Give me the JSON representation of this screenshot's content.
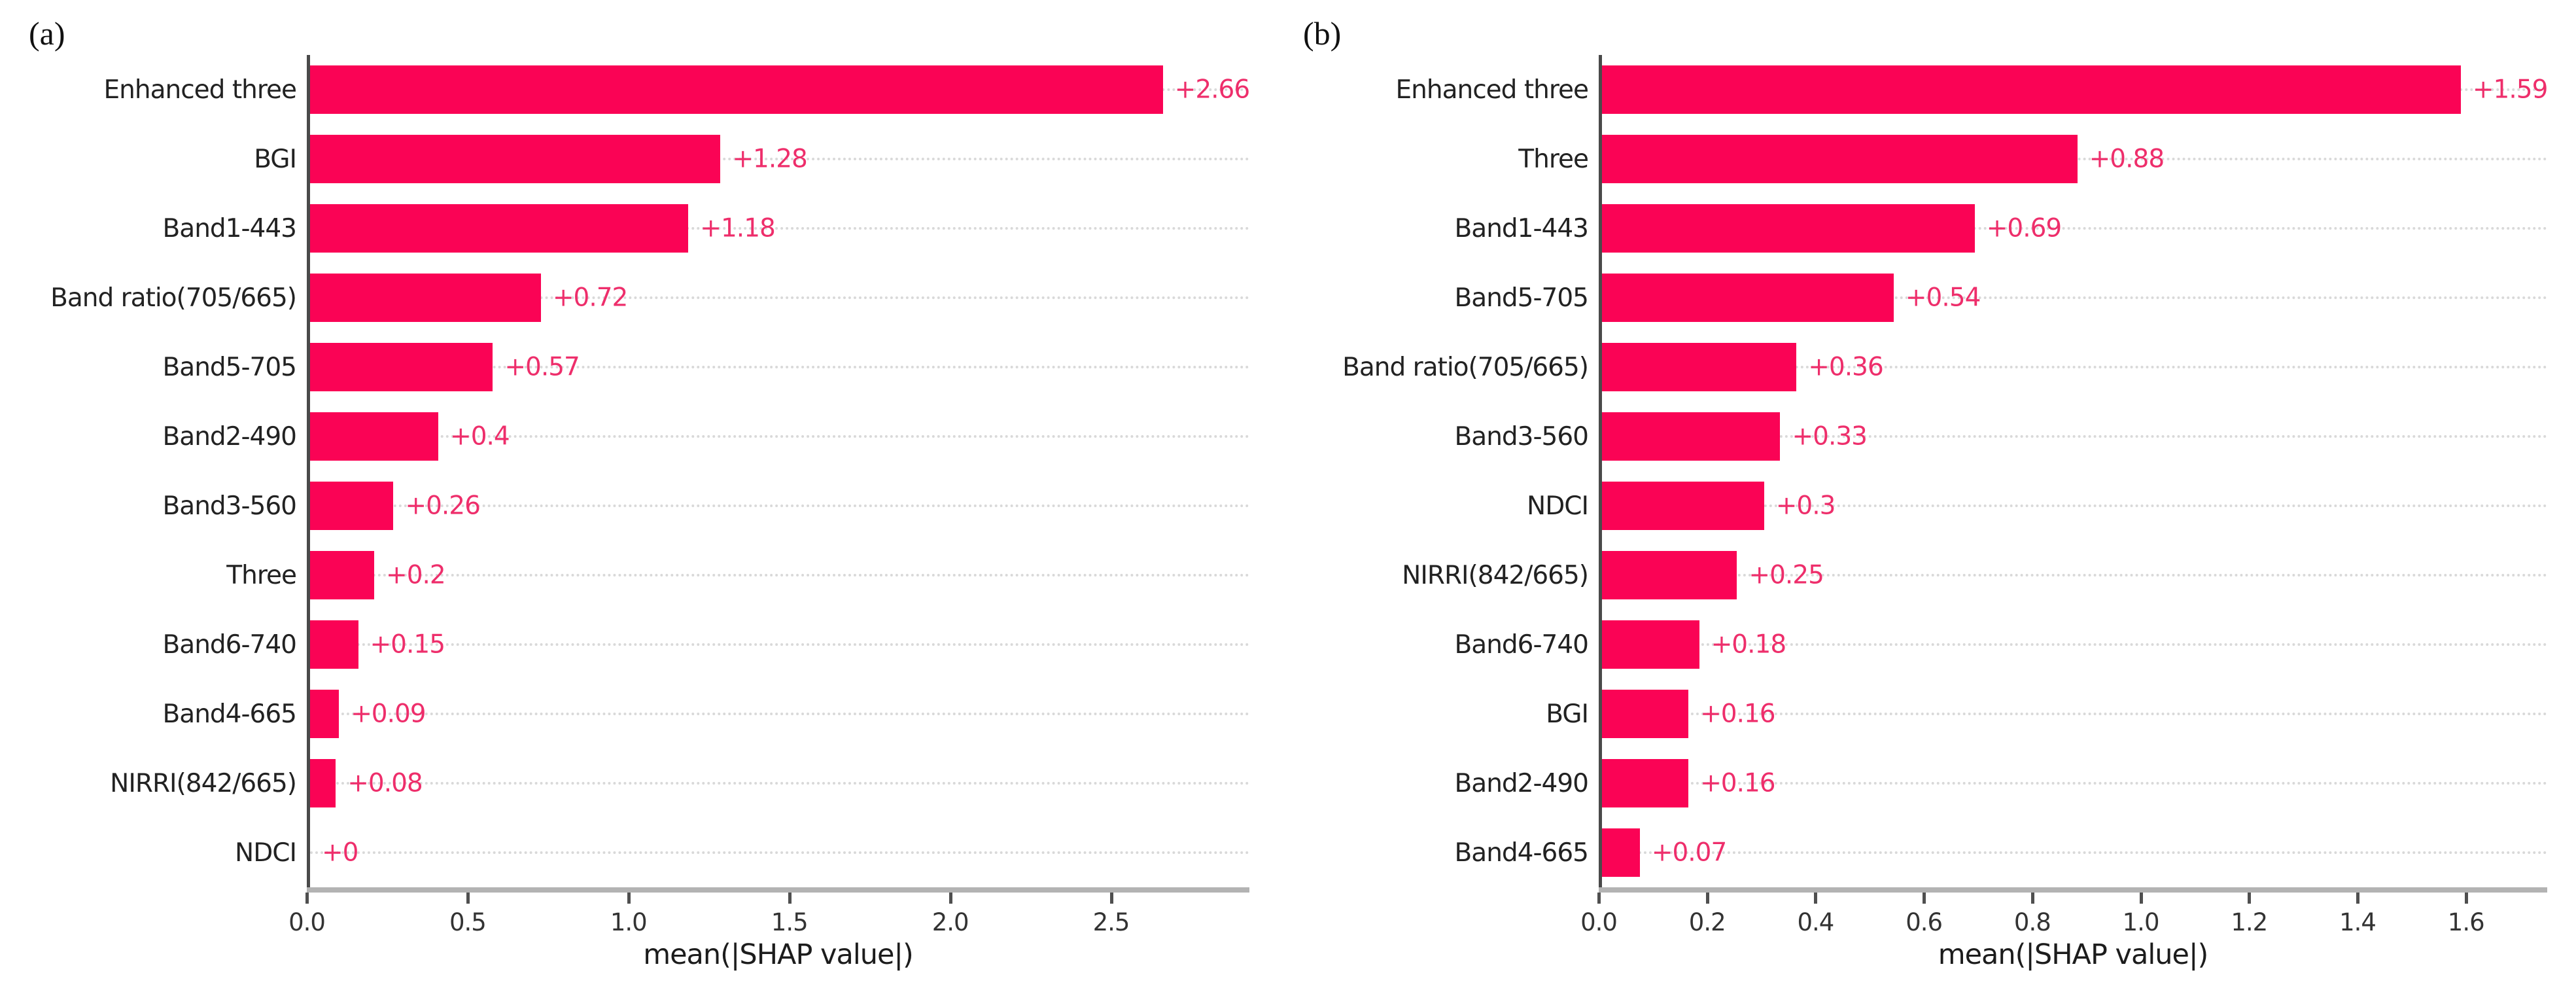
{
  "figure": {
    "background": "#ffffff",
    "panel_tags": [
      "(a)",
      "(b)"
    ]
  },
  "colors": {
    "bar": "#fa0355",
    "value_label": "#ee2e6b",
    "category_label": "#222222",
    "axis_spine": "#4a4a4a",
    "bottom_spine": "#b3b3b3",
    "tick_mark": "#4f4f4f",
    "tick_label": "#333333",
    "gridline": "#d9d9d9"
  },
  "chart_data": [
    {
      "type": "bar",
      "orientation": "horizontal",
      "tag": "(a)",
      "xlabel": "mean(|SHAP value|)",
      "xlim": [
        0,
        2.93
      ],
      "xtick_values": [
        0.0,
        0.5,
        1.0,
        1.5,
        2.0,
        2.5
      ],
      "xtick_labels": [
        "0.0",
        "0.5",
        "1.0",
        "1.5",
        "2.0",
        "2.5"
      ],
      "grid": "dotted horizontal line per category row",
      "legend": null,
      "categories": [
        "Enhanced three",
        "BGI",
        "Band1-443",
        "Band ratio(705/665)",
        "Band5-705",
        "Band2-490",
        "Band3-560",
        "Three",
        "Band6-740",
        "Band4-665",
        "NIRRI(842/665)",
        "NDCI"
      ],
      "values": [
        2.66,
        1.28,
        1.18,
        0.72,
        0.57,
        0.4,
        0.26,
        0.2,
        0.15,
        0.09,
        0.08,
        0
      ],
      "value_labels": [
        "+2.66",
        "+1.28",
        "+1.18",
        "+0.72",
        "+0.57",
        "+0.4",
        "+0.26",
        "+0.2",
        "+0.15",
        "+0.09",
        "+0.08",
        "+0"
      ]
    },
    {
      "type": "bar",
      "orientation": "horizontal",
      "tag": "(b)",
      "xlabel": "mean(|SHAP value|)",
      "xlim": [
        0,
        1.75
      ],
      "xtick_values": [
        0.0,
        0.2,
        0.4,
        0.6,
        0.8,
        1.0,
        1.2,
        1.4,
        1.6
      ],
      "xtick_labels": [
        "0.0",
        "0.2",
        "0.4",
        "0.6",
        "0.8",
        "1.0",
        "1.2",
        "1.4",
        "1.6"
      ],
      "grid": "dotted horizontal line per category row",
      "legend": null,
      "categories": [
        "Enhanced three",
        "Three",
        "Band1-443",
        "Band5-705",
        "Band ratio(705/665)",
        "Band3-560",
        "NDCI",
        "NIRRI(842/665)",
        "Band6-740",
        "BGI",
        "Band2-490",
        "Band4-665"
      ],
      "values": [
        1.59,
        0.88,
        0.69,
        0.54,
        0.36,
        0.33,
        0.3,
        0.25,
        0.18,
        0.16,
        0.16,
        0.07
      ],
      "value_labels": [
        "+1.59",
        "+0.88",
        "+0.69",
        "+0.54",
        "+0.36",
        "+0.33",
        "+0.3",
        "+0.25",
        "+0.18",
        "+0.16",
        "+0.16",
        "+0.07"
      ]
    }
  ]
}
